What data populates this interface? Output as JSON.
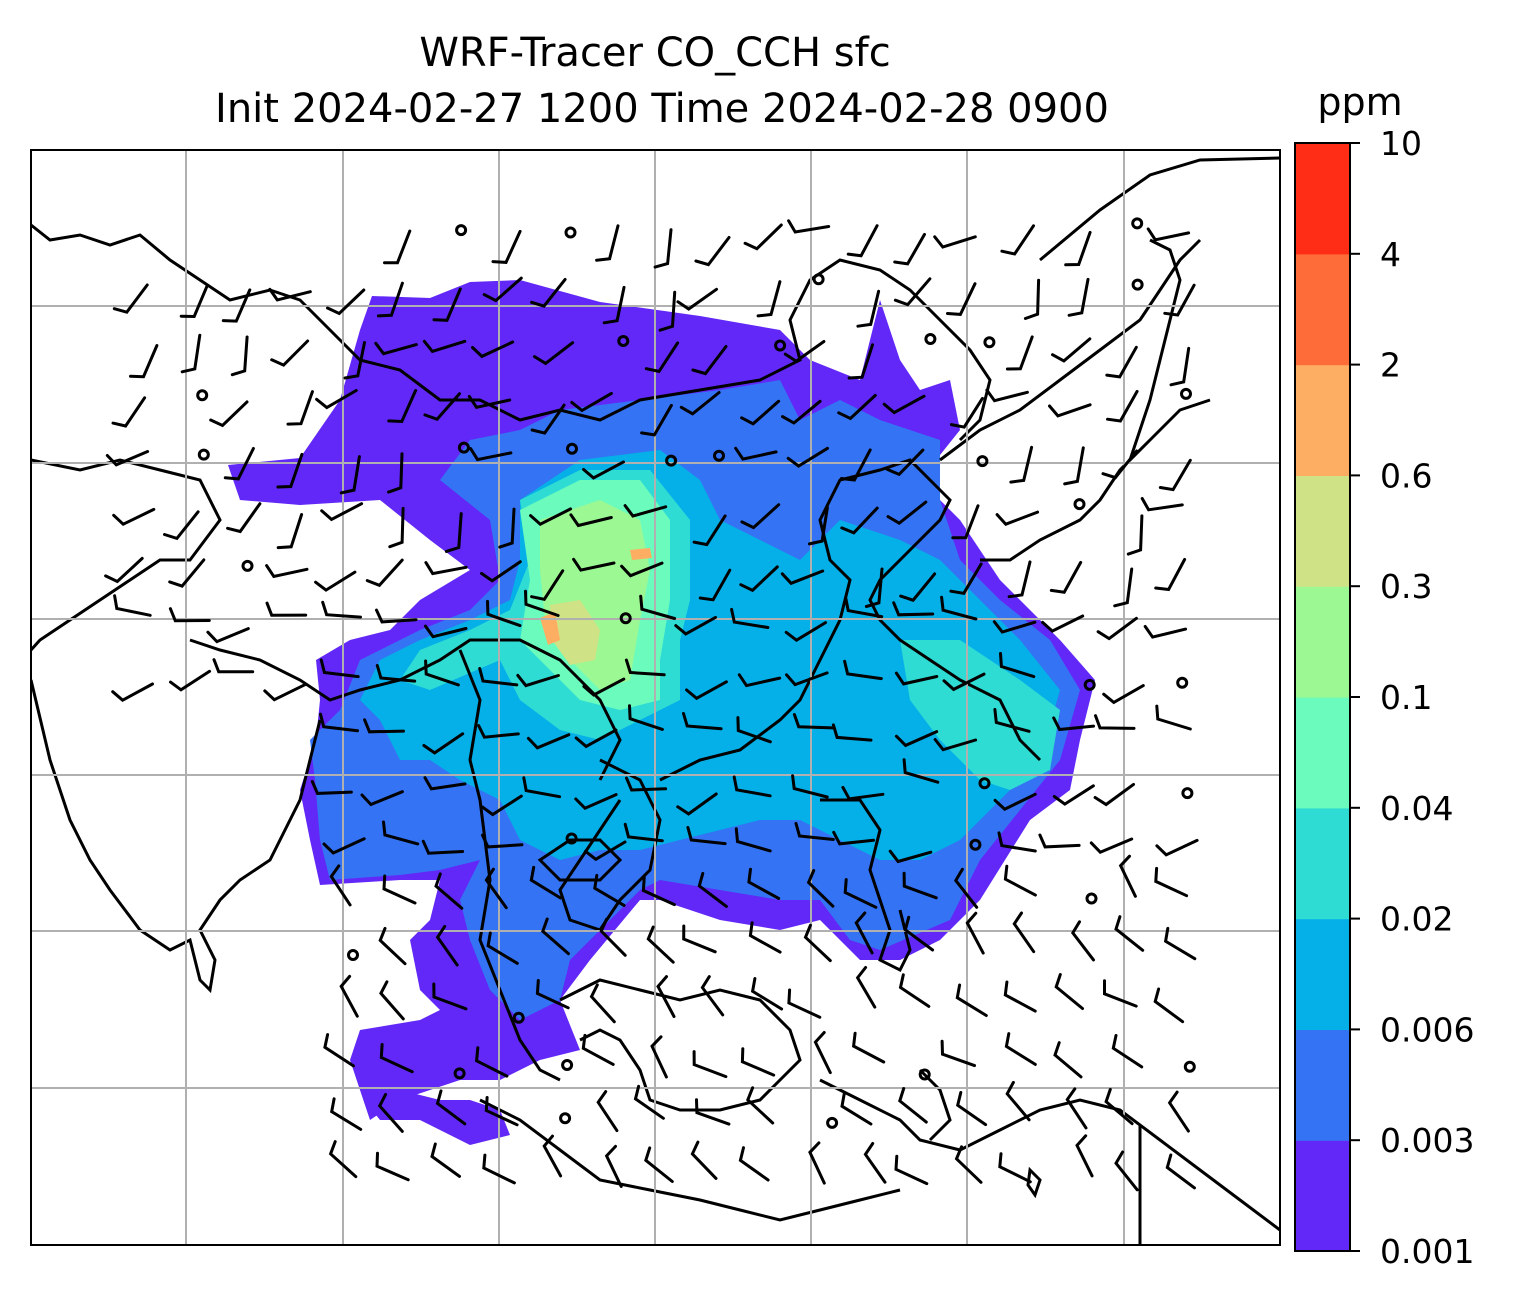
{
  "chart_data": {
    "type": "heatmap",
    "title_line1": "WRF-Tracer CO_CCH sfc",
    "title_line2": "Init 2024-02-27 1200 Time 2024-02-28 0900",
    "map_content": "filled concentration contours with wind barbs and coastlines; gridlines on",
    "grid": true,
    "colorbar": {
      "unit": "ppm",
      "levels": [
        "0.001",
        "0.003",
        "0.006",
        "0.02",
        "0.04",
        "0.1",
        "0.3",
        "0.6",
        "2",
        "4",
        "10"
      ],
      "colors": [
        "#6228f7",
        "#3473f3",
        "#05b0e8",
        "#2fdcd3",
        "#6bfcbd",
        "#9cf893",
        "#cfe286",
        "#feae63",
        "#fe6c3a",
        "#ff2d16"
      ]
    }
  }
}
